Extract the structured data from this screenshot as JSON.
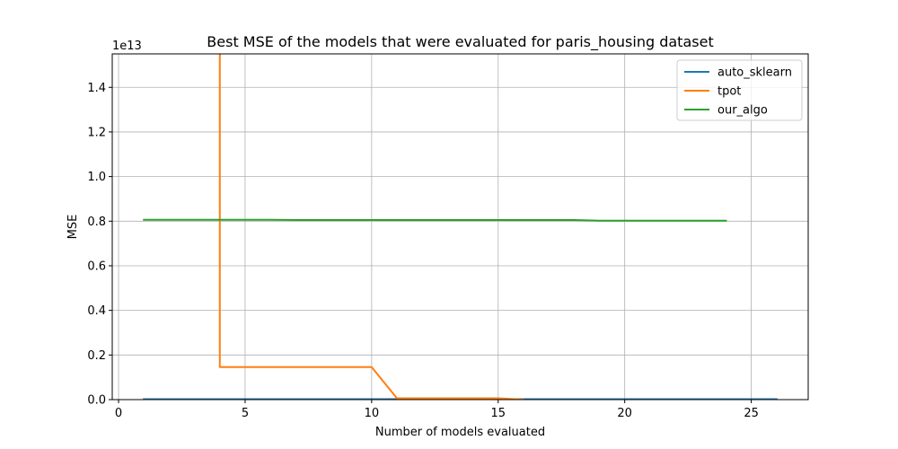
{
  "chart_data": {
    "type": "line",
    "title": "Best MSE of the models that were evaluated for paris_housing dataset",
    "xlabel": "Number of models evaluated",
    "ylabel": "MSE",
    "y_offset_label": "1e13",
    "xlim": [
      -0.25,
      27.25
    ],
    "ylim": [
      0,
      1.55
    ],
    "x_ticks": [
      0,
      5,
      10,
      15,
      20,
      25
    ],
    "x_tick_labels": [
      "0",
      "5",
      "10",
      "15",
      "20",
      "25"
    ],
    "y_ticks": [
      0,
      0.2,
      0.4,
      0.6,
      0.8,
      1.0,
      1.2,
      1.4
    ],
    "y_tick_labels": [
      "0.0",
      "0.2",
      "0.4",
      "0.6",
      "0.8",
      "1.0",
      "1.2",
      "1.4"
    ],
    "grid": true,
    "legend_position": "upper right",
    "series": [
      {
        "name": "auto_sklearn",
        "color": "#1f77b4",
        "x": [
          1,
          2,
          3,
          4,
          5,
          6,
          7,
          8,
          9,
          10,
          11,
          12,
          13,
          14,
          15,
          16,
          17,
          18,
          19,
          20,
          21,
          22,
          23,
          24,
          25,
          26
        ],
        "y": [
          0.002,
          0.002,
          0.002,
          0.002,
          0.002,
          0.002,
          0.002,
          0.002,
          0.002,
          0.002,
          0.002,
          0.002,
          0.002,
          0.002,
          0.002,
          0.002,
          0.002,
          0.002,
          0.002,
          0.002,
          0.002,
          0.002,
          0.002,
          0.002,
          0.002,
          0.002
        ]
      },
      {
        "name": "tpot",
        "color": "#ff7f0e",
        "x": [
          4,
          4,
          5,
          6,
          7,
          8,
          9,
          10,
          11,
          12,
          13,
          14,
          15,
          16
        ],
        "y": [
          1.6,
          0.146,
          0.146,
          0.146,
          0.146,
          0.146,
          0.146,
          0.146,
          0.006,
          0.006,
          0.006,
          0.006,
          0.006,
          0.0
        ]
      },
      {
        "name": "our_algo",
        "color": "#2ca02c",
        "x": [
          1,
          2,
          3,
          4,
          5,
          6,
          7,
          8,
          9,
          10,
          11,
          12,
          13,
          14,
          15,
          16,
          17,
          18,
          19,
          20,
          21,
          22,
          23,
          24
        ],
        "y": [
          0.806,
          0.806,
          0.806,
          0.806,
          0.806,
          0.806,
          0.805,
          0.805,
          0.805,
          0.805,
          0.805,
          0.805,
          0.805,
          0.805,
          0.805,
          0.805,
          0.805,
          0.805,
          0.802,
          0.802,
          0.802,
          0.802,
          0.802,
          0.802
        ]
      }
    ]
  }
}
